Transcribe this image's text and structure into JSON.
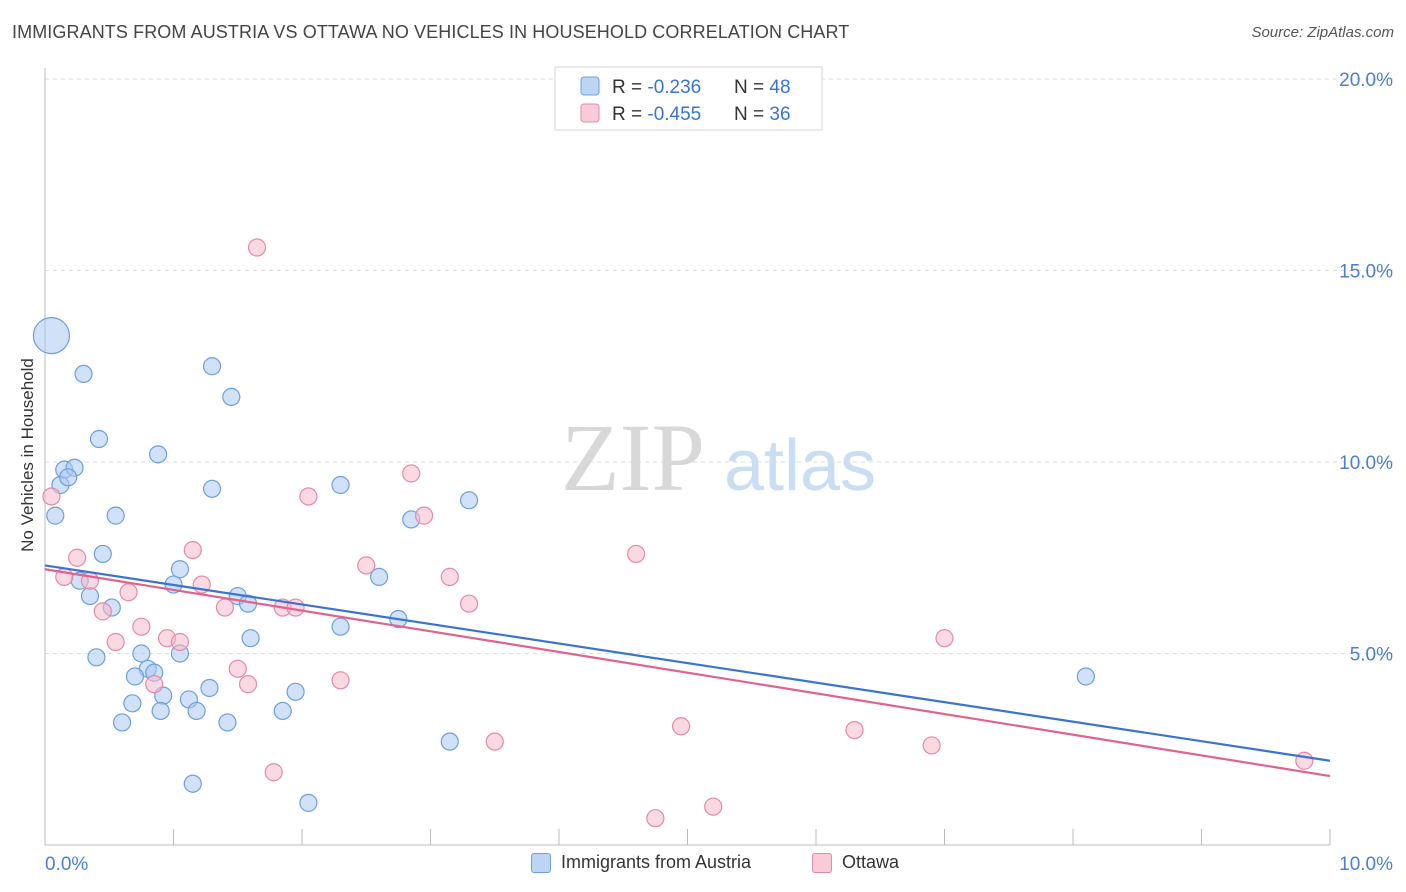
{
  "header": {
    "title": "IMMIGRANTS FROM AUSTRIA VS OTTAWA NO VEHICLES IN HOUSEHOLD CORRELATION CHART",
    "source": "Source: ZipAtlas.com"
  },
  "watermark": {
    "zip": "ZIP",
    "atlas": "atlas"
  },
  "colors": {
    "blue_fill": "#a9c9f2",
    "blue_stroke": "#6d9fdc",
    "blue_line": "#3a74d0",
    "pink_fill": "#f7b9cb",
    "pink_stroke": "#e48aa6",
    "pink_line": "#e0628e",
    "tick_text": "#4a7fd0",
    "grid": "#dddddd"
  },
  "legend": {
    "rows": [
      {
        "r_label": "R = ",
        "r_value": "-0.236",
        "n_label": "N = ",
        "n_value": "48"
      },
      {
        "r_label": "R = ",
        "r_value": "-0.455",
        "n_label": "N = ",
        "n_value": "36"
      }
    ]
  },
  "chart_data": {
    "type": "scatter",
    "title": "IMMIGRANTS FROM AUSTRIA VS OTTAWA NO VEHICLES IN HOUSEHOLD CORRELATION CHART",
    "xlabel": "",
    "ylabel": "No Vehicles in Household",
    "xlim": [
      0,
      10
    ],
    "ylim": [
      0,
      20
    ],
    "x_tick_labels": [
      "0.0%",
      "10.0%"
    ],
    "y_ticks": [
      5,
      10,
      15,
      20
    ],
    "y_tick_labels": [
      "5.0%",
      "10.0%",
      "15.0%",
      "20.0%"
    ],
    "grid": true,
    "legend_position": "top-center",
    "series": [
      {
        "name": "Immigrants from Austria",
        "r": -0.236,
        "n": 48,
        "trend": {
          "x": [
            0,
            10
          ],
          "y": [
            7.3,
            2.2
          ]
        },
        "points": [
          {
            "x": 0.05,
            "y": 13.3,
            "big": true
          },
          {
            "x": 0.3,
            "y": 12.3
          },
          {
            "x": 1.3,
            "y": 12.5
          },
          {
            "x": 1.45,
            "y": 11.7
          },
          {
            "x": 0.42,
            "y": 10.6
          },
          {
            "x": 0.88,
            "y": 10.2
          },
          {
            "x": 0.15,
            "y": 9.8
          },
          {
            "x": 0.23,
            "y": 9.85
          },
          {
            "x": 0.12,
            "y": 9.4
          },
          {
            "x": 0.18,
            "y": 9.6
          },
          {
            "x": 1.3,
            "y": 9.3
          },
          {
            "x": 2.3,
            "y": 9.4
          },
          {
            "x": 3.3,
            "y": 9.0
          },
          {
            "x": 0.08,
            "y": 8.6
          },
          {
            "x": 0.55,
            "y": 8.6
          },
          {
            "x": 2.85,
            "y": 8.5
          },
          {
            "x": 0.45,
            "y": 7.6
          },
          {
            "x": 1.05,
            "y": 7.2
          },
          {
            "x": 1.0,
            "y": 6.8
          },
          {
            "x": 0.27,
            "y": 6.9
          },
          {
            "x": 0.35,
            "y": 6.5
          },
          {
            "x": 0.52,
            "y": 6.2
          },
          {
            "x": 1.5,
            "y": 6.5
          },
          {
            "x": 1.58,
            "y": 6.3
          },
          {
            "x": 2.6,
            "y": 7.0
          },
          {
            "x": 2.75,
            "y": 5.9
          },
          {
            "x": 2.3,
            "y": 5.7
          },
          {
            "x": 1.6,
            "y": 5.4
          },
          {
            "x": 0.4,
            "y": 4.9
          },
          {
            "x": 0.75,
            "y": 5.0
          },
          {
            "x": 1.05,
            "y": 5.0
          },
          {
            "x": 0.8,
            "y": 4.6
          },
          {
            "x": 0.7,
            "y": 4.4
          },
          {
            "x": 0.85,
            "y": 4.5
          },
          {
            "x": 0.68,
            "y": 3.7
          },
          {
            "x": 0.92,
            "y": 3.9
          },
          {
            "x": 1.12,
            "y": 3.8
          },
          {
            "x": 1.28,
            "y": 4.1
          },
          {
            "x": 0.9,
            "y": 3.5
          },
          {
            "x": 1.18,
            "y": 3.5
          },
          {
            "x": 1.95,
            "y": 4.0
          },
          {
            "x": 1.85,
            "y": 3.5
          },
          {
            "x": 0.6,
            "y": 3.2
          },
          {
            "x": 1.42,
            "y": 3.2
          },
          {
            "x": 3.15,
            "y": 2.7
          },
          {
            "x": 1.15,
            "y": 1.6
          },
          {
            "x": 2.05,
            "y": 1.1
          },
          {
            "x": 8.1,
            "y": 4.4
          }
        ]
      },
      {
        "name": "Ottawa",
        "r": -0.455,
        "n": 36,
        "trend": {
          "x": [
            0,
            10
          ],
          "y": [
            7.2,
            1.8
          ]
        },
        "points": [
          {
            "x": 1.65,
            "y": 15.6
          },
          {
            "x": 0.05,
            "y": 9.1
          },
          {
            "x": 2.05,
            "y": 9.1
          },
          {
            "x": 2.85,
            "y": 9.7
          },
          {
            "x": 2.95,
            "y": 8.6
          },
          {
            "x": 1.15,
            "y": 7.7
          },
          {
            "x": 0.25,
            "y": 7.5
          },
          {
            "x": 2.5,
            "y": 7.3
          },
          {
            "x": 4.6,
            "y": 7.6
          },
          {
            "x": 0.15,
            "y": 7.0
          },
          {
            "x": 0.35,
            "y": 6.9
          },
          {
            "x": 1.22,
            "y": 6.8
          },
          {
            "x": 0.65,
            "y": 6.6
          },
          {
            "x": 3.15,
            "y": 7.0
          },
          {
            "x": 3.3,
            "y": 6.3
          },
          {
            "x": 1.4,
            "y": 6.2
          },
          {
            "x": 1.85,
            "y": 6.2
          },
          {
            "x": 1.95,
            "y": 6.2
          },
          {
            "x": 0.45,
            "y": 6.1
          },
          {
            "x": 0.75,
            "y": 5.7
          },
          {
            "x": 0.95,
            "y": 5.4
          },
          {
            "x": 1.05,
            "y": 5.3
          },
          {
            "x": 0.55,
            "y": 5.3
          },
          {
            "x": 7.0,
            "y": 5.4
          },
          {
            "x": 1.5,
            "y": 4.6
          },
          {
            "x": 2.3,
            "y": 4.3
          },
          {
            "x": 0.85,
            "y": 4.2
          },
          {
            "x": 1.58,
            "y": 4.2
          },
          {
            "x": 4.95,
            "y": 3.1
          },
          {
            "x": 6.3,
            "y": 3.0
          },
          {
            "x": 3.5,
            "y": 2.7
          },
          {
            "x": 6.9,
            "y": 2.6
          },
          {
            "x": 1.78,
            "y": 1.9
          },
          {
            "x": 9.8,
            "y": 2.2
          },
          {
            "x": 5.2,
            "y": 1.0
          },
          {
            "x": 4.75,
            "y": 0.7
          }
        ]
      }
    ]
  }
}
